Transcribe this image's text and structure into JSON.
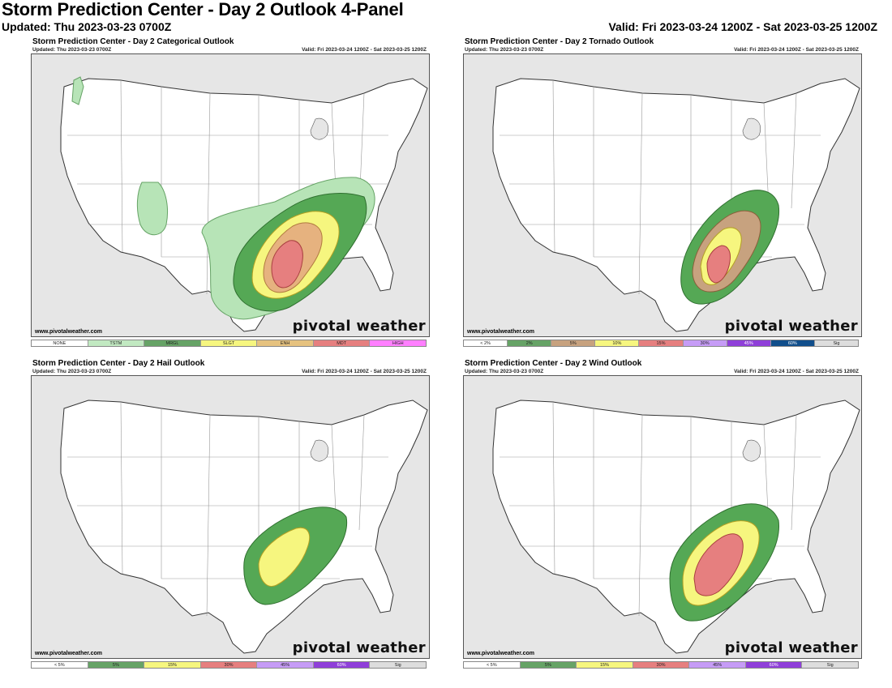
{
  "header": {
    "title": "Storm Prediction Center - Day 2 Outlook 4-Panel",
    "updated": "Updated: Thu 2023-03-23 0700Z",
    "valid": "Valid: Fri 2023-03-24 1200Z - Sat 2023-03-25 1200Z"
  },
  "brand": {
    "credit": "www.pivotalweather.com",
    "logo_text": "pivotal weather"
  },
  "panels": [
    {
      "title": "Storm Prediction Center - Day 2 Categorical Outlook",
      "updated": "Updated: Thu 2023-03-23 0700Z",
      "valid": "Valid: Fri 2023-03-24 1200Z - Sat 2023-03-25 1200Z",
      "legend": [
        {
          "label": "NONE",
          "color": "#ffffff"
        },
        {
          "label": "TSTM",
          "color": "#c1e9c1"
        },
        {
          "label": "MRGL",
          "color": "#66a366"
        },
        {
          "label": "SLGT",
          "color": "#f6f67f"
        },
        {
          "label": "ENH",
          "color": "#e6c27f"
        },
        {
          "label": "MDT",
          "color": "#e67f7f"
        },
        {
          "label": "HIGH",
          "color": "#ff7fff"
        }
      ]
    },
    {
      "title": "Storm Prediction Center - Day 2 Tornado Outlook",
      "updated": "Updated: Thu 2023-03-23 0700Z",
      "valid": "Valid: Fri 2023-03-24 1200Z - Sat 2023-03-25 1200Z",
      "legend": [
        {
          "label": "< 2%",
          "color": "#ffffff"
        },
        {
          "label": "2%",
          "color": "#66a366"
        },
        {
          "label": "5%",
          "color": "#c7a27f"
        },
        {
          "label": "10%",
          "color": "#f6f67f"
        },
        {
          "label": "15%",
          "color": "#e67f7f"
        },
        {
          "label": "30%",
          "color": "#c69cf6"
        },
        {
          "label": "45%",
          "color": "#8f3fd9"
        },
        {
          "label": "60%",
          "color": "#104e8b"
        },
        {
          "label": "Sig",
          "color": "#dddddd"
        }
      ]
    },
    {
      "title": "Storm Prediction Center - Day 2 Hail Outlook",
      "updated": "Updated: Thu 2023-03-23 0700Z",
      "valid": "Valid: Fri 2023-03-24 1200Z - Sat 2023-03-25 1200Z",
      "legend": [
        {
          "label": "< 5%",
          "color": "#ffffff"
        },
        {
          "label": "5%",
          "color": "#66a366"
        },
        {
          "label": "15%",
          "color": "#f6f67f"
        },
        {
          "label": "30%",
          "color": "#e67f7f"
        },
        {
          "label": "45%",
          "color": "#c69cf6"
        },
        {
          "label": "60%",
          "color": "#8f3fd9"
        },
        {
          "label": "Sig",
          "color": "#dddddd"
        }
      ]
    },
    {
      "title": "Storm Prediction Center - Day 2 Wind Outlook",
      "updated": "Updated: Thu 2023-03-23 0700Z",
      "valid": "Valid: Fri 2023-03-24 1200Z - Sat 2023-03-25 1200Z",
      "legend": [
        {
          "label": "< 5%",
          "color": "#ffffff"
        },
        {
          "label": "5%",
          "color": "#66a366"
        },
        {
          "label": "15%",
          "color": "#f6f67f"
        },
        {
          "label": "30%",
          "color": "#e67f7f"
        },
        {
          "label": "45%",
          "color": "#c69cf6"
        },
        {
          "label": "60%",
          "color": "#8f3fd9"
        },
        {
          "label": "Sig",
          "color": "#dddddd"
        }
      ]
    }
  ],
  "colors": {
    "land": "#ffffff",
    "water": "#e6e6e6",
    "tstm": "#b7e4b7",
    "mrgl": "#55a855",
    "slgt": "#f6f67f",
    "enh": "#e6b27f",
    "mdt": "#e67f7f",
    "tor5": "#c7a27f"
  }
}
